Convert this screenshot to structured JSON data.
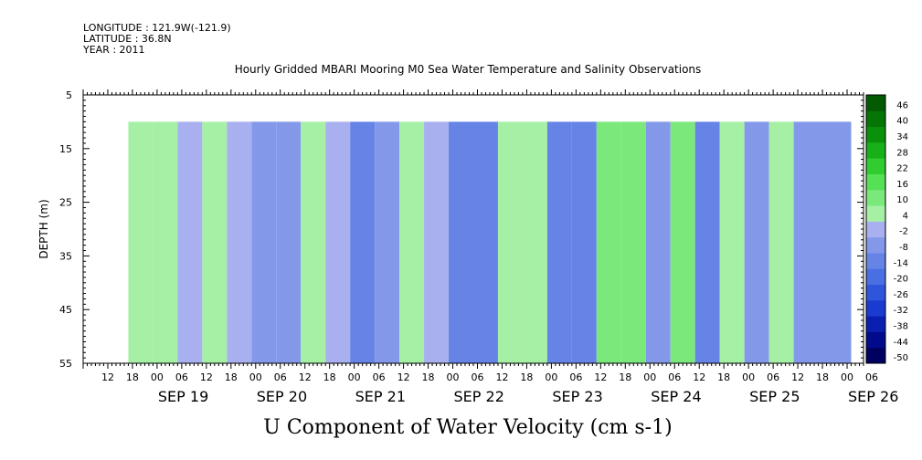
{
  "header": {
    "longitude": "LONGITUDE : 121.9W(-121.9)",
    "latitude": "LATITUDE : 36.8N",
    "year": "YEAR : 2011"
  },
  "chart_data": {
    "type": "heatmap",
    "title": "Hourly Gridded MBARI Mooring M0 Sea Water Temperature and Salinity Observations",
    "xlabel": "U Component of Water Velocity (cm s-1)",
    "ylabel": "DEPTH (m)",
    "ylim": [
      55,
      5
    ],
    "y_ticks": [
      5,
      15,
      25,
      35,
      45,
      55
    ],
    "data_depth_range": [
      10,
      55
    ],
    "x_hour_ticks": [
      "12",
      "18",
      "00",
      "06",
      "12",
      "18",
      "00",
      "06",
      "12",
      "18",
      "00",
      "06",
      "12",
      "18",
      "00",
      "06",
      "12",
      "18",
      "00",
      "06",
      "12",
      "18",
      "00",
      "06",
      "12",
      "18",
      "00",
      "06",
      "12",
      "18",
      "00",
      "06"
    ],
    "x_day_labels": [
      "SEP 19",
      "SEP 20",
      "SEP 21",
      "SEP 22",
      "SEP 23",
      "SEP 24",
      "SEP 25",
      "SEP 26"
    ],
    "x_range": [
      "2011-09-19 06:00",
      "2011-09-27 04:00"
    ],
    "data_time_range": [
      "2011-09-19 17:00",
      "2011-09-27 01:00"
    ],
    "colorbar": {
      "levels": [
        -50,
        -44,
        -38,
        -32,
        -26,
        -20,
        -14,
        -8,
        -2,
        4,
        10,
        16,
        22,
        28,
        34,
        40,
        46
      ],
      "labels": [
        "46",
        "40",
        "34",
        "28",
        "22",
        "16",
        "10",
        "4",
        "-2",
        "-8",
        "-14",
        "-20",
        "-26",
        "-32",
        "-38",
        "-44",
        "-50"
      ],
      "colors": [
        "#000060",
        "#000a8a",
        "#0a1eb0",
        "#1a3ad0",
        "#2f55dd",
        "#4a6fe3",
        "#6684e6",
        "#8498ea",
        "#a8b0f0",
        "#a6f0a6",
        "#7be87b",
        "#55e055",
        "#30cc30",
        "#18b018",
        "#0a900a",
        "#057505",
        "#035a03"
      ]
    },
    "bands": [
      {
        "time": "2011-09-19 17:00",
        "value": 8
      },
      {
        "time": "2011-09-19 23:00",
        "value": 6
      },
      {
        "time": "2011-09-20 05:00",
        "value": 2
      },
      {
        "time": "2011-09-20 11:00",
        "value": 6
      },
      {
        "time": "2011-09-20 17:00",
        "value": -2
      },
      {
        "time": "2011-09-20 23:00",
        "value": -6
      },
      {
        "time": "2011-09-21 05:00",
        "value": -6
      },
      {
        "time": "2011-09-21 11:00",
        "value": 6
      },
      {
        "time": "2011-09-21 17:00",
        "value": 2
      },
      {
        "time": "2011-09-21 23:00",
        "value": -10
      },
      {
        "time": "2011-09-22 05:00",
        "value": -8
      },
      {
        "time": "2011-09-22 11:00",
        "value": 4
      },
      {
        "time": "2011-09-22 17:00",
        "value": 2
      },
      {
        "time": "2011-09-22 23:00",
        "value": -12
      },
      {
        "time": "2011-09-23 05:00",
        "value": -14
      },
      {
        "time": "2011-09-23 11:00",
        "value": 6
      },
      {
        "time": "2011-09-23 17:00",
        "value": 4
      },
      {
        "time": "2011-09-23 23:00",
        "value": -10
      },
      {
        "time": "2011-09-24 05:00",
        "value": -12
      },
      {
        "time": "2011-09-24 11:00",
        "value": 10
      },
      {
        "time": "2011-09-24 17:00",
        "value": 14
      },
      {
        "time": "2011-09-24 23:00",
        "value": -6
      },
      {
        "time": "2011-09-25 05:00",
        "value": 14
      },
      {
        "time": "2011-09-25 11:00",
        "value": -14
      },
      {
        "time": "2011-09-25 17:00",
        "value": 6
      },
      {
        "time": "2011-09-25 23:00",
        "value": -6
      },
      {
        "time": "2011-09-26 05:00",
        "value": 8
      },
      {
        "time": "2011-09-26 11:00",
        "value": -4
      }
    ]
  }
}
